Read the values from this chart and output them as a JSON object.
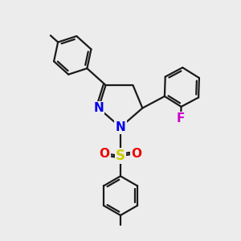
{
  "bg_color": "#ececec",
  "bond_color": "#1a1a1a",
  "bond_width": 1.6,
  "N_color": "#0000ee",
  "O_color": "#ee0000",
  "S_color": "#cccc00",
  "F_color": "#cc00cc",
  "C_color": "#1a1a1a",
  "figsize": [
    3.0,
    3.0
  ],
  "dpi": 100,
  "xlim": [
    0,
    10
  ],
  "ylim": [
    0,
    10
  ]
}
